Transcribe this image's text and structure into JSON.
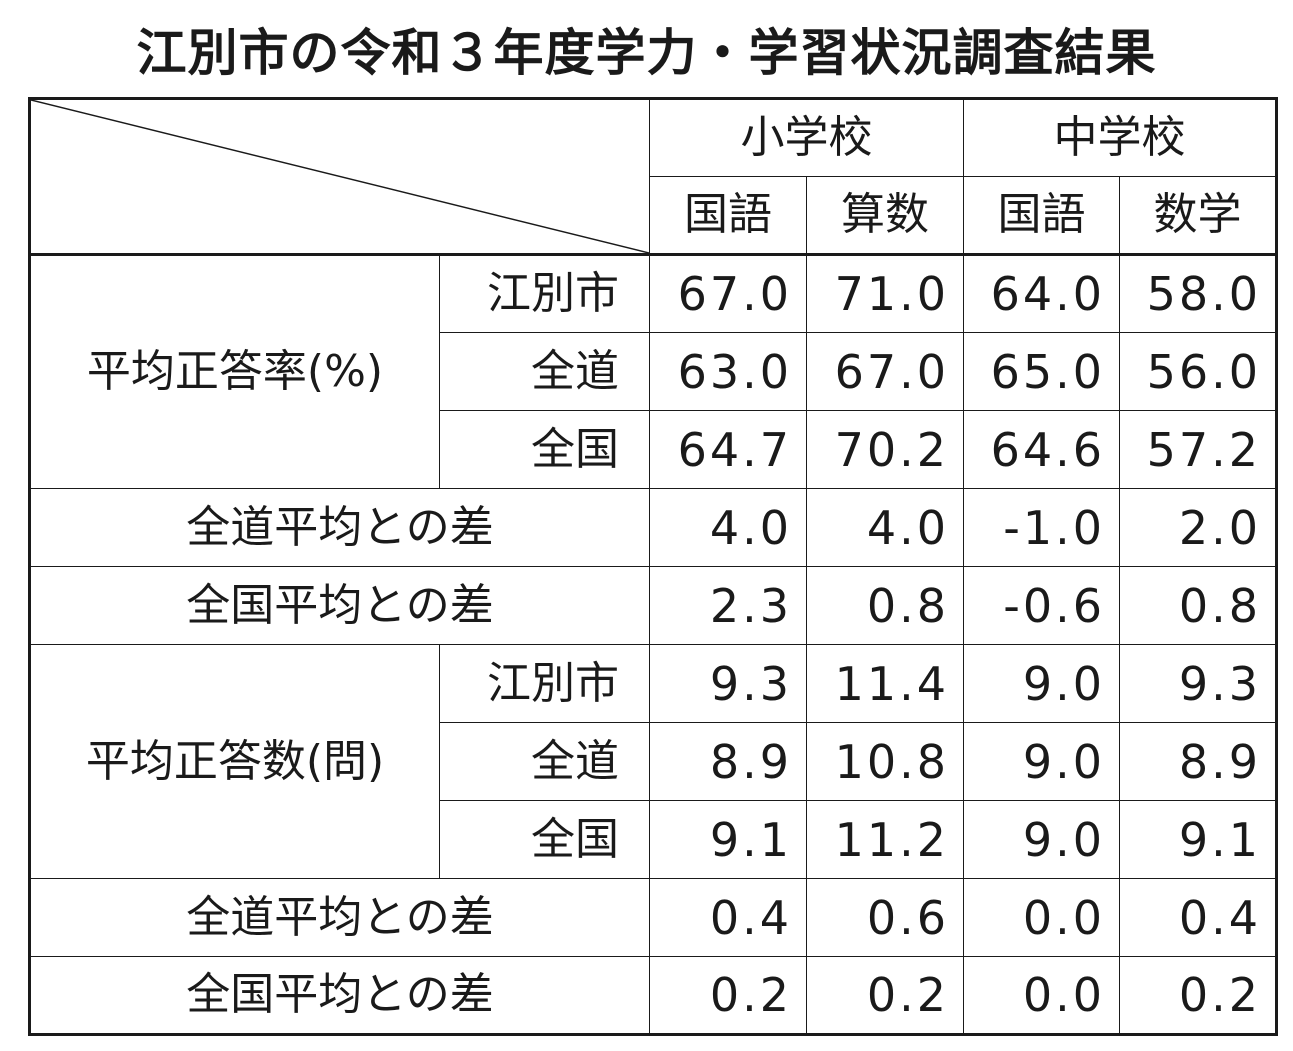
{
  "title": "江別市の令和３年度学力・学習状況調査結果",
  "header": {
    "schools": [
      "小学校",
      "中学校"
    ],
    "subjects": [
      "国語",
      "算数",
      "国語",
      "数学"
    ]
  },
  "rows": [
    {
      "group": "平均正答率(%)",
      "label": "江別市",
      "values": [
        "67.0",
        "71.0",
        "64.0",
        "58.0"
      ]
    },
    {
      "label": "全道",
      "values": [
        "63.0",
        "67.0",
        "65.0",
        "56.0"
      ]
    },
    {
      "label": "全国",
      "values": [
        "64.7",
        "70.2",
        "64.6",
        "57.2"
      ]
    },
    {
      "label": "全道平均との差",
      "values": [
        "4.0",
        "4.0",
        "-1.0",
        "2.0"
      ]
    },
    {
      "label": "全国平均との差",
      "values": [
        "2.3",
        "0.8",
        "-0.6",
        "0.8"
      ]
    },
    {
      "group": "平均正答数(問)",
      "label": "江別市",
      "values": [
        "9.3",
        "11.4",
        "9.0",
        "9.3"
      ]
    },
    {
      "label": "全道",
      "values": [
        "8.9",
        "10.8",
        "9.0",
        "8.9"
      ]
    },
    {
      "label": "全国",
      "values": [
        "9.1",
        "11.2",
        "9.0",
        "9.1"
      ]
    },
    {
      "label": "全道平均との差",
      "values": [
        "0.4",
        "0.6",
        "0.0",
        "0.4"
      ]
    },
    {
      "label": "全国平均との差",
      "values": [
        "0.2",
        "0.2",
        "0.0",
        "0.2"
      ]
    }
  ]
}
